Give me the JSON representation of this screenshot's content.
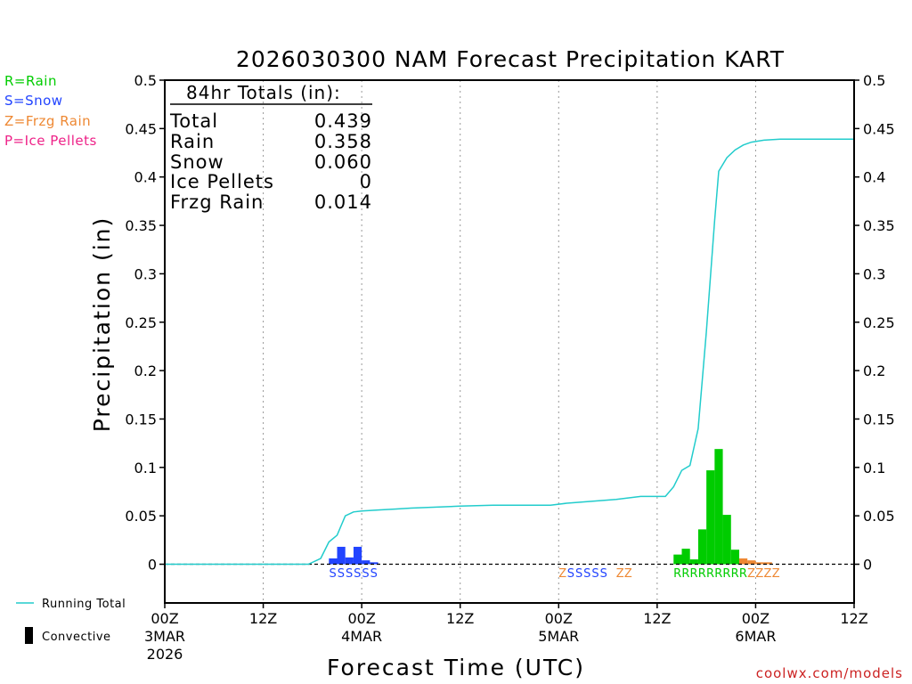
{
  "colors": {
    "rain": "#00cc00",
    "snow": "#2244ff",
    "frzg_rain": "#ee8833",
    "ice_pellets": "#ee2288",
    "running_total": "#22cccc",
    "convective": "#000000",
    "credit": "#cc2222"
  },
  "type_legend": [
    {
      "label": "R=Rain",
      "color": "#00cc00"
    },
    {
      "label": "S=Snow",
      "color": "#2244ff"
    },
    {
      "label": "Z=Frzg Rain",
      "color": "#ee8833"
    },
    {
      "label": "P=Ice Pellets",
      "color": "#ee2288"
    }
  ],
  "bottom_legend": {
    "running_total": "Running Total",
    "convective": "Convective"
  },
  "totals": {
    "header": "84hr Totals (in):",
    "rows": [
      {
        "label": "Total",
        "value": "0.439"
      },
      {
        "label": "Rain",
        "value": "0.358"
      },
      {
        "label": "Snow",
        "value": "0.060"
      },
      {
        "label": "Ice Pellets",
        "value": "0"
      },
      {
        "label": "Frzg Rain",
        "value": "0.014"
      }
    ]
  },
  "credit": "coolwx.com/models",
  "chart_data": {
    "type": "bar",
    "title": "2026030300 NAM Forecast Precipitation KART",
    "xlabel": "Forecast Time (UTC)",
    "ylabel": "Precipitation (in)",
    "xlim_hours": [
      0,
      84
    ],
    "ylim": [
      -0.04,
      0.5
    ],
    "y_ticks": [
      0,
      0.05,
      0.1,
      0.15,
      0.2,
      0.25,
      0.3,
      0.35,
      0.4,
      0.45,
      0.5
    ],
    "y_tick_labels": [
      "0",
      "0.05",
      "0.1",
      "0.15",
      "0.2",
      "0.25",
      "0.3",
      "0.35",
      "0.4",
      "0.45",
      "0.5"
    ],
    "x_ticks": [
      {
        "hour": 0,
        "lines": [
          "00Z",
          "3MAR",
          "2026"
        ]
      },
      {
        "hour": 12,
        "lines": [
          "12Z"
        ]
      },
      {
        "hour": 24,
        "lines": [
          "00Z",
          "4MAR"
        ]
      },
      {
        "hour": 36,
        "lines": [
          "12Z"
        ]
      },
      {
        "hour": 48,
        "lines": [
          "00Z",
          "5MAR"
        ]
      },
      {
        "hour": 60,
        "lines": [
          "12Z"
        ]
      },
      {
        "hour": 72,
        "lines": [
          "00Z",
          "6MAR"
        ]
      },
      {
        "hour": 84,
        "lines": [
          "12Z"
        ]
      }
    ],
    "bar_width_hours": 1,
    "bars": [
      {
        "hour": 20,
        "value": 0.006,
        "type": "snow"
      },
      {
        "hour": 21,
        "value": 0.018,
        "type": "snow"
      },
      {
        "hour": 22,
        "value": 0.007,
        "type": "snow"
      },
      {
        "hour": 23,
        "value": 0.018,
        "type": "snow"
      },
      {
        "hour": 24,
        "value": 0.004,
        "type": "snow"
      },
      {
        "hour": 25,
        "value": 0.002,
        "type": "snow"
      },
      {
        "hour": 62,
        "value": 0.01,
        "type": "rain"
      },
      {
        "hour": 63,
        "value": 0.016,
        "type": "rain"
      },
      {
        "hour": 64,
        "value": 0.005,
        "type": "rain"
      },
      {
        "hour": 65,
        "value": 0.036,
        "type": "rain"
      },
      {
        "hour": 66,
        "value": 0.097,
        "type": "rain"
      },
      {
        "hour": 67,
        "value": 0.119,
        "type": "rain"
      },
      {
        "hour": 68,
        "value": 0.051,
        "type": "rain"
      },
      {
        "hour": 69,
        "value": 0.015,
        "type": "rain"
      },
      {
        "hour": 70,
        "value": 0.006,
        "type": "frzg_rain"
      },
      {
        "hour": 71,
        "value": 0.004,
        "type": "frzg_rain"
      },
      {
        "hour": 72,
        "value": 0.002,
        "type": "frzg_rain"
      },
      {
        "hour": 73,
        "value": 0.002,
        "type": "frzg_rain"
      }
    ],
    "running_total": [
      [
        0,
        0
      ],
      [
        17.5,
        0
      ],
      [
        19,
        0.006
      ],
      [
        20,
        0.023
      ],
      [
        21,
        0.03
      ],
      [
        22,
        0.05
      ],
      [
        23,
        0.054
      ],
      [
        24,
        0.055
      ],
      [
        26,
        0.056
      ],
      [
        28,
        0.057
      ],
      [
        30,
        0.058
      ],
      [
        36,
        0.06
      ],
      [
        40,
        0.061
      ],
      [
        47,
        0.061
      ],
      [
        49,
        0.063
      ],
      [
        52,
        0.065
      ],
      [
        55,
        0.067
      ],
      [
        58,
        0.07
      ],
      [
        59,
        0.07
      ],
      [
        60,
        0.07
      ],
      [
        61,
        0.07
      ],
      [
        62,
        0.08
      ],
      [
        63,
        0.097
      ],
      [
        64,
        0.102
      ],
      [
        65,
        0.14
      ],
      [
        66,
        0.24
      ],
      [
        67,
        0.355
      ],
      [
        67.5,
        0.406
      ],
      [
        68.5,
        0.42
      ],
      [
        69.5,
        0.428
      ],
      [
        70.5,
        0.433
      ],
      [
        71.5,
        0.436
      ],
      [
        73,
        0.438
      ],
      [
        75,
        0.439
      ],
      [
        84,
        0.439
      ]
    ],
    "type_labels": [
      {
        "hour": 20,
        "text": "S",
        "type": "snow"
      },
      {
        "hour": 21,
        "text": "S",
        "type": "snow"
      },
      {
        "hour": 22,
        "text": "S",
        "type": "snow"
      },
      {
        "hour": 23,
        "text": "S",
        "type": "snow"
      },
      {
        "hour": 24,
        "text": "S",
        "type": "snow"
      },
      {
        "hour": 25,
        "text": "S",
        "type": "snow"
      },
      {
        "hour": 48,
        "text": "Z",
        "type": "frzg_rain"
      },
      {
        "hour": 49,
        "text": "S",
        "type": "snow"
      },
      {
        "hour": 50,
        "text": "S",
        "type": "snow"
      },
      {
        "hour": 51,
        "text": "S",
        "type": "snow"
      },
      {
        "hour": 52,
        "text": "S",
        "type": "snow"
      },
      {
        "hour": 53,
        "text": "S",
        "type": "snow"
      },
      {
        "hour": 55,
        "text": "Z",
        "type": "frzg_rain"
      },
      {
        "hour": 56,
        "text": "Z",
        "type": "frzg_rain"
      },
      {
        "hour": 62,
        "text": "R",
        "type": "rain"
      },
      {
        "hour": 63,
        "text": "R",
        "type": "rain"
      },
      {
        "hour": 64,
        "text": "R",
        "type": "rain"
      },
      {
        "hour": 65,
        "text": "R",
        "type": "rain"
      },
      {
        "hour": 66,
        "text": "R",
        "type": "rain"
      },
      {
        "hour": 67,
        "text": "R",
        "type": "rain"
      },
      {
        "hour": 68,
        "text": "R",
        "type": "rain"
      },
      {
        "hour": 69,
        "text": "R",
        "type": "rain"
      },
      {
        "hour": 70,
        "text": "R",
        "type": "rain"
      },
      {
        "hour": 71,
        "text": "Z",
        "type": "frzg_rain"
      },
      {
        "hour": 72,
        "text": "Z",
        "type": "frzg_rain"
      },
      {
        "hour": 73,
        "text": "Z",
        "type": "frzg_rain"
      },
      {
        "hour": 74,
        "text": "Z",
        "type": "frzg_rain"
      }
    ]
  }
}
